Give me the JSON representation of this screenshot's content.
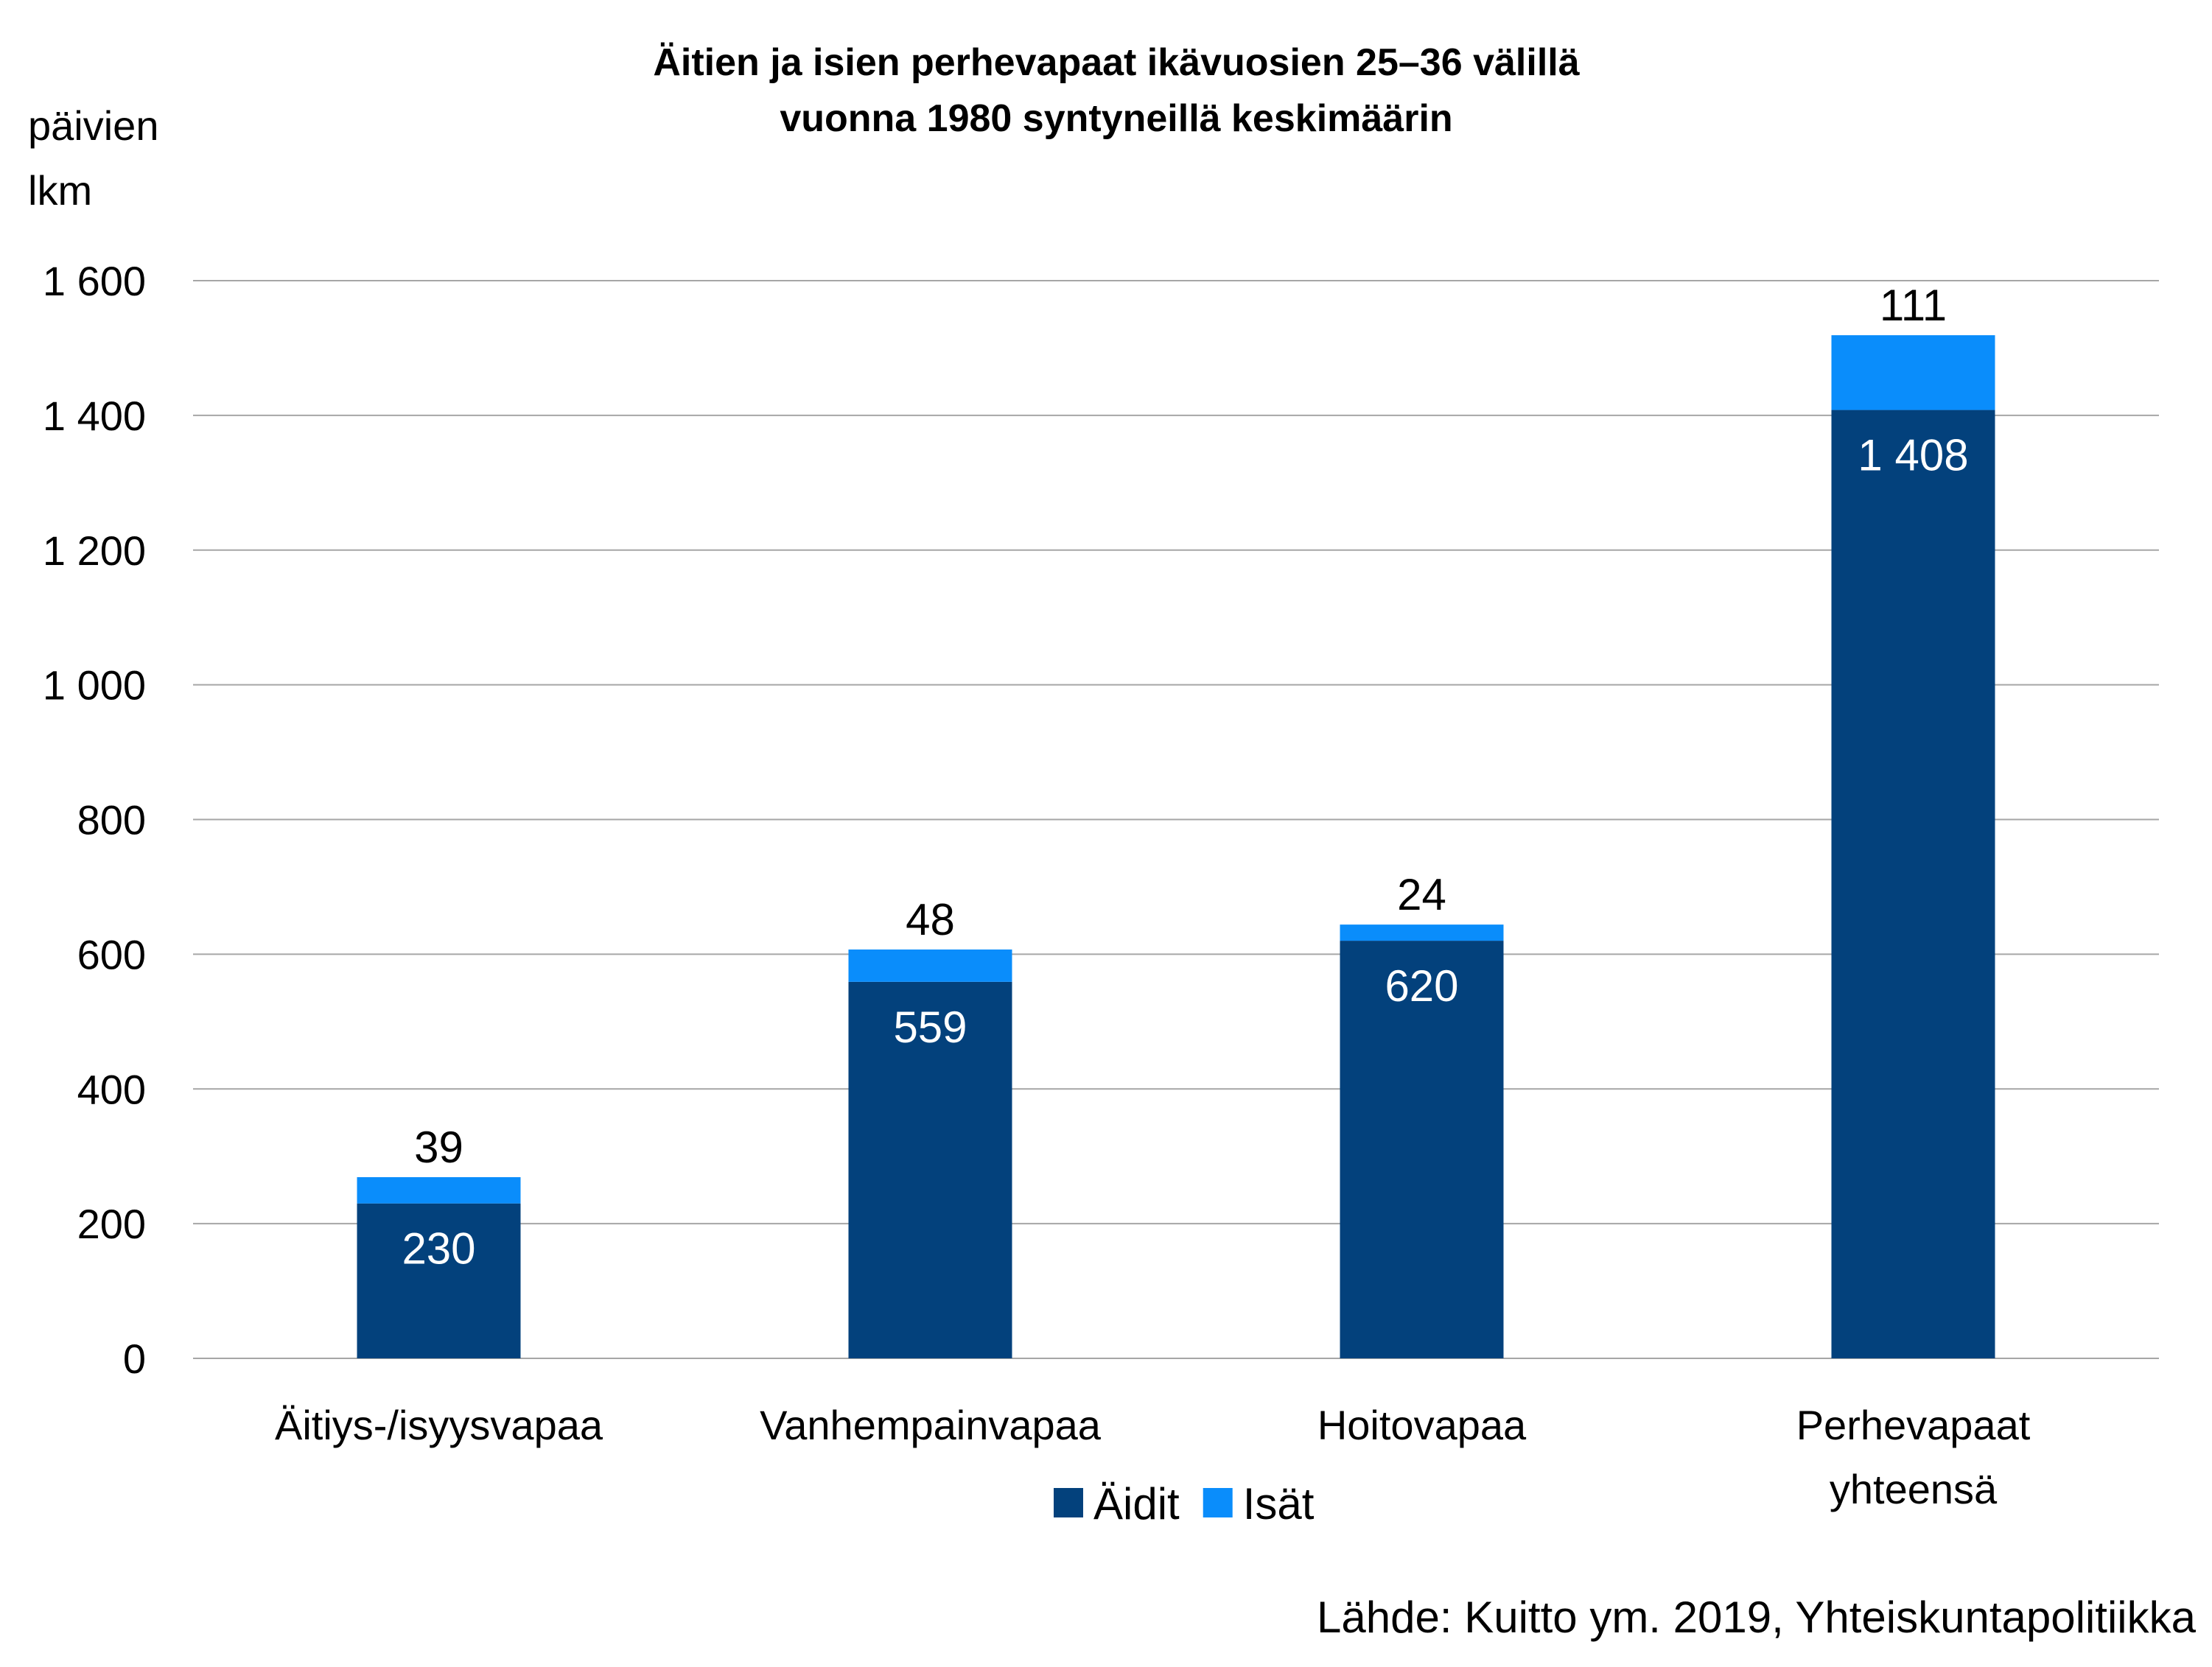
{
  "chart_data": {
    "type": "bar",
    "stacked": true,
    "title": [
      "Äitien ja isien perhevapaat ikävuosien 25–36 välillä",
      "vuonna 1980 syntyneillä keskimäärin"
    ],
    "ylabel": [
      "päivien",
      "lkm"
    ],
    "categories": [
      [
        "Äitiys-/isyysvapaa"
      ],
      [
        "Vanhempainvapaa"
      ],
      [
        "Hoitovapaa"
      ],
      [
        "Perhevapaat",
        "yhteensä"
      ]
    ],
    "series": [
      {
        "name": "Äidit",
        "color": "#03417c",
        "values": [
          230,
          559,
          620,
          1408
        ],
        "labels": [
          "230",
          "559",
          "620",
          "1 408"
        ]
      },
      {
        "name": "Isät",
        "color": "#0a8dfb",
        "values": [
          39,
          48,
          24,
          111
        ],
        "labels": [
          "39",
          "48",
          "24",
          "111"
        ]
      }
    ],
    "ylim": [
      0,
      1600
    ],
    "yticks": [
      0,
      200,
      400,
      600,
      800,
      1000,
      1200,
      1400,
      1600
    ],
    "ytick_labels": [
      "0",
      "200",
      "400",
      "600",
      "800",
      "1 000",
      "1 200",
      "1 400",
      "1 600"
    ],
    "grid": true,
    "legend": "bottom-center",
    "source": "Lähde: Kuitto ym. 2019, Yhteiskuntapolitiikka"
  }
}
